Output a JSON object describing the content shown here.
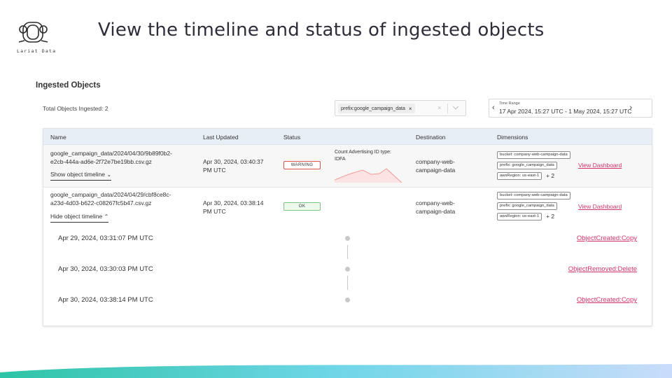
{
  "logo": {
    "name": "Lariat Data",
    "text": "Lariat Data"
  },
  "slide": {
    "title": "View the timeline and status of ingested objects"
  },
  "section": {
    "title": "Ingested Objects",
    "total": "Total Objects Ingested: 2"
  },
  "filter": {
    "chip": "prefix:google_campaign_data",
    "chip_remove": "×",
    "clear": "×"
  },
  "time_range": {
    "label": "Time Range",
    "value": "17 Apr 2024, 15:27 UTC - 1 May 2024, 15:27 UTC",
    "prev": "‹",
    "next": "›"
  },
  "table": {
    "columns": [
      "Name",
      "Last Updated",
      "Status",
      "Destination",
      "Dimensions"
    ],
    "rows": [
      {
        "name_line1": "google_campaign_data/2024/04/30/9b89f0b2-",
        "name_line2": "e2cb-444a-ad6e-2f72e7be19bb.csv.gz",
        "toggle": "Show object timeline",
        "updated_line1": "Apr 30, 2024, 03:40:37",
        "updated_line2": "PM UTC",
        "status": "WARNING",
        "status_color": "#d9534f",
        "metric_title": "Count Advertising ID type:",
        "metric_sub": "IDFA",
        "destination_line1": "company-web-",
        "destination_line2": "campaign-data",
        "dimensions": [
          "bucket: company-web-campaign-data",
          "prefix: google_campaign_data",
          "awsRegion: us-east-1"
        ],
        "more": "+ 2",
        "link": "View Dashboard"
      },
      {
        "name_line1": "google_campaign_data/2024/04/29/cbf8ce8c-",
        "name_line2": "a23d-4d03-b622-c08267fc5b47.csv.gz",
        "toggle": "Hide object timeline",
        "updated_line1": "Apr 30, 2024, 03:38:14",
        "updated_line2": "PM UTC",
        "status": "OK",
        "status_color": "#7cc47f",
        "destination_line1": "company-web-",
        "destination_line2": "campaign-data",
        "dimensions": [
          "bucket: company-web-campaign-data",
          "prefix: google_campaign_data",
          "awsRegion: us-east-1"
        ],
        "more": "+ 2",
        "link": "View Dashboard"
      }
    ]
  },
  "timeline": [
    {
      "time": "Apr 29, 2024, 03:31:07 PM UTC",
      "event": "ObjectCreated:Copy"
    },
    {
      "time": "Apr 30, 2024, 03:30:03 PM UTC",
      "event": "ObjectRemoved:Delete"
    },
    {
      "time": "Apr 30, 2024, 03:38:14 PM UTC",
      "event": "ObjectCreated:Copy"
    }
  ],
  "colors": {
    "accent_link": "#d6336c",
    "header_bg": "#e8eef6",
    "footer_gradient": [
      "#2ec4a6",
      "#6fd6e8",
      "#c9dcfa"
    ]
  }
}
